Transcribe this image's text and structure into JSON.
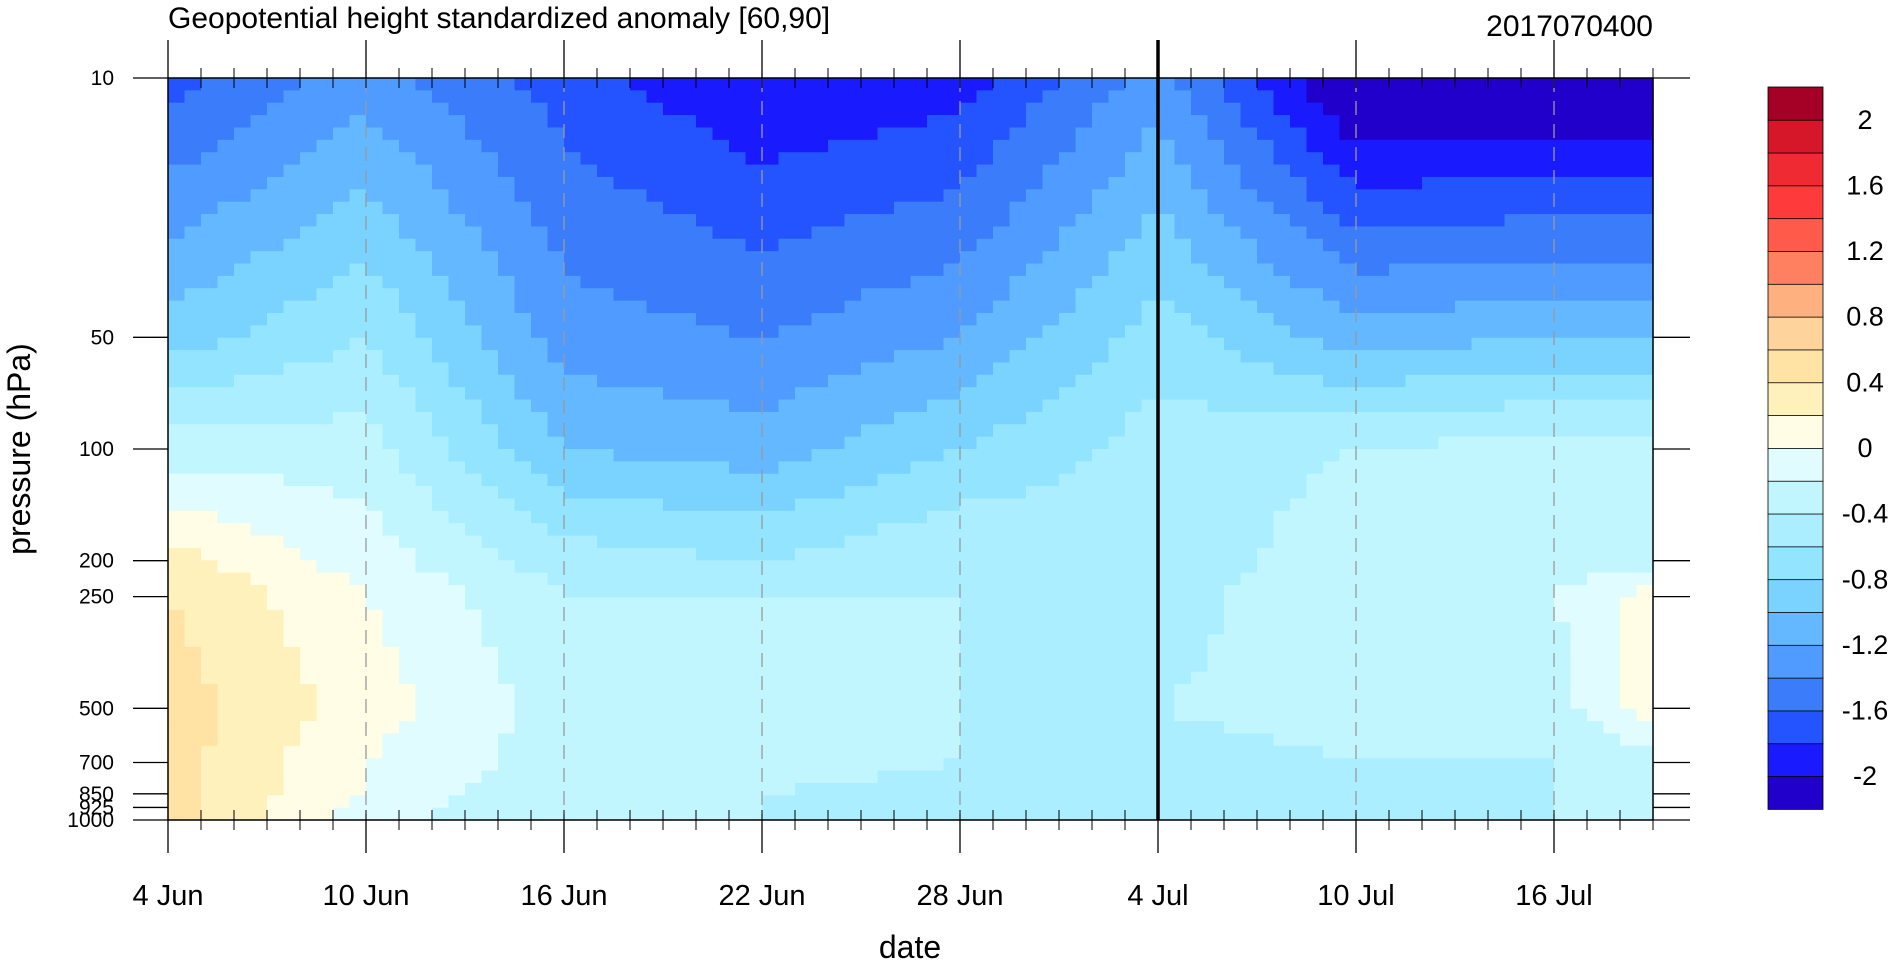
{
  "chart_data": {
    "type": "heatmap",
    "title": "Geopotential height standardized anomaly [60,90]",
    "run_label": "2017070400",
    "xlabel": "date",
    "ylabel": "pressure (hPa)",
    "y_scale": "log",
    "y_reversed": true,
    "ylim": [
      10,
      1000
    ],
    "xlim": [
      "2017-06-04",
      "2017-07-19"
    ],
    "x_ticks": [
      {
        "date": "2017-06-04",
        "label": "4 Jun"
      },
      {
        "date": "2017-06-10",
        "label": "10 Jun"
      },
      {
        "date": "2017-06-16",
        "label": "16 Jun"
      },
      {
        "date": "2017-06-22",
        "label": "22 Jun"
      },
      {
        "date": "2017-06-28",
        "label": "28 Jun"
      },
      {
        "date": "2017-07-04",
        "label": "4 Jul"
      },
      {
        "date": "2017-07-10",
        "label": "10 Jul"
      },
      {
        "date": "2017-07-16",
        "label": "16 Jul"
      }
    ],
    "y_ticks": [
      {
        "value": 10,
        "label": "10"
      },
      {
        "value": 50,
        "label": "50"
      },
      {
        "value": 100,
        "label": "100"
      },
      {
        "value": 200,
        "label": "200"
      },
      {
        "value": 250,
        "label": "250"
      },
      {
        "value": 500,
        "label": "500"
      },
      {
        "value": 700,
        "label": "700"
      },
      {
        "value": 850,
        "label": "850"
      },
      {
        "value": 925,
        "label": "925"
      },
      {
        "value": 1000,
        "label": "1000"
      }
    ],
    "forecast_start": "2017-07-04",
    "grid": "dashed vertical lines at date ticks",
    "levels": [
      10,
      50,
      100,
      200,
      250,
      500,
      700,
      850,
      925,
      1000
    ],
    "dates": [
      "2017-06-04",
      "2017-06-10",
      "2017-06-16",
      "2017-06-22",
      "2017-06-28",
      "2017-07-04",
      "2017-07-10",
      "2017-07-16",
      "2017-07-19"
    ],
    "values": [
      [
        -1.7,
        -1.3,
        -1.7,
        -2.0,
        -1.9,
        -1.3,
        -2.3,
        -2.3,
        -2.3
      ],
      [
        -0.9,
        -0.6,
        -1.3,
        -1.4,
        -1.2,
        -0.7,
        -1.1,
        -1.0,
        -1.0
      ],
      [
        -0.3,
        -0.3,
        -1.0,
        -1.1,
        -0.8,
        -0.5,
        -0.4,
        -0.3,
        -0.3
      ],
      [
        0.3,
        -0.1,
        -0.5,
        -0.6,
        -0.4,
        -0.5,
        -0.3,
        -0.3,
        -0.3
      ],
      [
        0.4,
        0.0,
        -0.4,
        -0.4,
        -0.4,
        -0.5,
        -0.2,
        -0.2,
        0.1
      ],
      [
        0.5,
        0.1,
        -0.3,
        -0.3,
        -0.4,
        -0.4,
        -0.3,
        -0.3,
        0.1
      ],
      [
        0.5,
        0.0,
        -0.3,
        -0.3,
        -0.4,
        -0.5,
        -0.4,
        -0.4,
        -0.3
      ],
      [
        0.5,
        0.0,
        -0.4,
        -0.4,
        -0.5,
        -0.5,
        -0.5,
        -0.4,
        -0.4
      ],
      [
        0.5,
        -0.1,
        -0.4,
        -0.4,
        -0.5,
        -0.5,
        -0.5,
        -0.4,
        -0.4
      ],
      [
        0.5,
        -0.1,
        -0.4,
        -0.4,
        -0.5,
        -0.5,
        -0.5,
        -0.4,
        -0.4
      ]
    ],
    "colorbar": {
      "labels": [
        "2",
        "1.6",
        "1.2",
        "0.8",
        "0.4",
        "0",
        "-0.4",
        "-0.8",
        "-1.2",
        "-1.6",
        "-2"
      ],
      "label_values": [
        2,
        1.6,
        1.2,
        0.8,
        0.4,
        0,
        -0.4,
        -0.8,
        -1.2,
        -1.6,
        -2
      ],
      "bounds": [
        -2.2,
        -2.0,
        -1.8,
        -1.6,
        -1.4,
        -1.2,
        -1.0,
        -0.8,
        -0.6,
        -0.4,
        -0.2,
        0,
        0.2,
        0.4,
        0.6,
        0.8,
        1.0,
        1.2,
        1.4,
        1.6,
        1.8,
        2.0,
        2.2
      ],
      "colors": [
        "#2200cc",
        "#1a1aff",
        "#2454ff",
        "#3a7cfa",
        "#4f9bff",
        "#63b8ff",
        "#7ad2ff",
        "#92e4ff",
        "#aaeeff",
        "#c2f6ff",
        "#e1fcff",
        "#fffde6",
        "#fff1bb",
        "#fee3a4",
        "#fed39c",
        "#feb07f",
        "#ff8060",
        "#ff5a4a",
        "#ff3a3a",
        "#f02a32",
        "#d6172a",
        "#a50026"
      ]
    }
  }
}
